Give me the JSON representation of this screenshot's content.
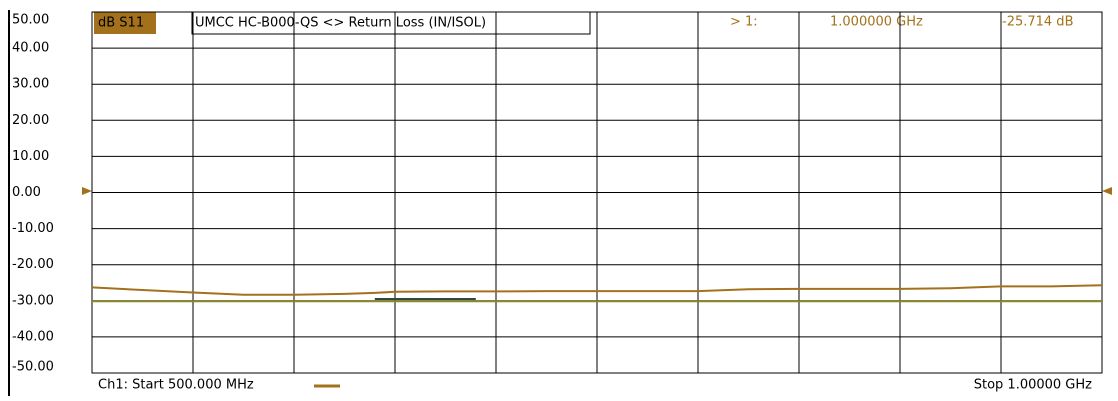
{
  "chart_data": {
    "type": "line",
    "trace_label": "dB S11",
    "title": "UMCC HC-B000-QS <> Return Loss (IN/ISOL)",
    "marker": {
      "label": "> 1:",
      "frequency": "1.000000 GHz",
      "value": "-25.714 dB"
    },
    "start_label": "Ch1: Start 500.000 MHz",
    "stop_label": "Stop 1.00000 GHz",
    "xlim": [
      0.5,
      1.0
    ],
    "x": [
      0.5,
      0.525,
      0.55,
      0.575,
      0.6,
      0.625,
      0.64,
      0.65,
      0.675,
      0.69,
      0.7,
      0.725,
      0.75,
      0.775,
      0.8,
      0.825,
      0.85,
      0.875,
      0.9,
      0.925,
      0.95,
      0.975,
      1.0
    ],
    "ylim": [
      -50,
      50
    ],
    "yticks": [
      {
        "value": 50,
        "label": "50.00"
      },
      {
        "value": 40,
        "label": "40.00"
      },
      {
        "value": 30,
        "label": "30.00"
      },
      {
        "value": 20,
        "label": "20.00"
      },
      {
        "value": 10,
        "label": "10.00"
      },
      {
        "value": 0,
        "label": "0.00"
      },
      {
        "value": -10,
        "label": "-10.00"
      },
      {
        "value": -20,
        "label": "-20.00"
      },
      {
        "value": -30,
        "label": "-30.00"
      },
      {
        "value": -40,
        "label": "-40.00"
      },
      {
        "value": -50,
        "label": "-50.00"
      }
    ],
    "xgrid_divisions": 10,
    "grid": true,
    "series": [
      {
        "color": "#a3711c",
        "values": [
          -26.3,
          -27.0,
          -27.7,
          -28.3,
          -28.3,
          -28.1,
          -27.8,
          -27.5,
          -27.4,
          -27.4,
          -27.4,
          -27.3,
          -27.3,
          -27.3,
          -27.3,
          -26.8,
          -26.7,
          -26.7,
          -26.7,
          -26.5,
          -26.0,
          -26.0,
          -25.714
        ]
      },
      {
        "color": "#8a8a2a",
        "values": [
          -30.1,
          -30.1,
          -30.1,
          -30.1,
          -30.1,
          -30.1,
          -30.1,
          -30.1,
          -30.1,
          -30.1,
          -30.1,
          -30.1,
          -30.1,
          -30.1,
          -30.1,
          -30.1,
          -30.1,
          -30.1,
          -30.1,
          -30.1,
          -30.1,
          -30.1,
          -30.1
        ]
      },
      {
        "color": "#2d4a3c",
        "values": [
          null,
          null,
          null,
          null,
          null,
          null,
          -29.5,
          -29.5,
          -29.5,
          -29.5,
          null,
          null,
          null,
          null,
          null,
          null,
          null,
          null,
          null,
          null,
          null,
          null,
          null
        ]
      }
    ]
  }
}
